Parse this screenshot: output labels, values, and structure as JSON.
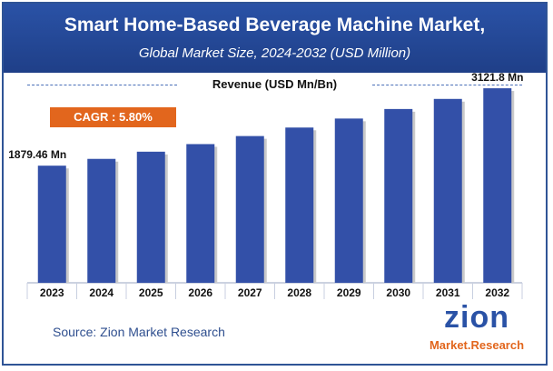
{
  "header": {
    "title": "Smart Home-Based Beverage Machine Market,",
    "subtitle": "Global Market Size, 2024-2032 (USD Million)"
  },
  "legend_label": "Revenue (USD Mn/Bn)",
  "cagr_label": "CAGR : 5.80%",
  "source": "Source: Zion Market Research",
  "logo": {
    "word": "zion",
    "tagline": "Market.Research"
  },
  "colors": {
    "header": "#2a52a6",
    "bar": "#3350a8",
    "cagr": "#e2661d"
  },
  "chart_data": {
    "type": "bar",
    "categories": [
      "2023",
      "2024",
      "2025",
      "2026",
      "2027",
      "2028",
      "2029",
      "2030",
      "2031",
      "2032"
    ],
    "series": [
      {
        "values": [
          1879.46,
          1988.5,
          2103.8,
          2225.8,
          2354.9,
          2491.5,
          2636.0,
          2788.9,
          2950.7,
          3121.8
        ]
      }
    ],
    "data_labels": [
      {
        "index": 0,
        "text": "1879.46 Mn"
      },
      {
        "index": 9,
        "text": "3121.8 Mn"
      }
    ],
    "ylabel": "Revenue (USD Mn/Bn)",
    "ylim": [
      0,
      3400
    ],
    "grid": false,
    "legend": "top-center"
  }
}
